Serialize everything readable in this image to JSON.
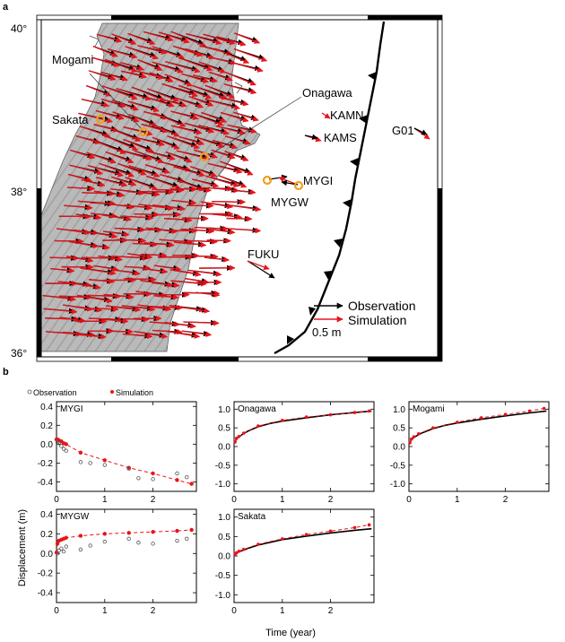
{
  "panel_a": {
    "letter": "a",
    "lat_labels": [
      "40°",
      "38°",
      "36°"
    ],
    "station_labels": {
      "mogami": "Mogami",
      "sakata": "Sakata",
      "onagawa": "Onagawa",
      "kamn": "KAMN",
      "kams": "KAMS",
      "g01": "G01",
      "mygi": "MYGI",
      "mygw": "MYGW",
      "fuku": "FUKU"
    },
    "legend": {
      "observation": "Observation",
      "simulation": "Simulation",
      "scale": "0.5 m"
    },
    "colors": {
      "observation": "#000000",
      "simulation": "#e8141b",
      "station_marker": "#f0a020",
      "land": "#b9b9b9"
    }
  },
  "panel_b": {
    "letter": "b",
    "legend": {
      "observation": "Observation",
      "simulation": "Simulation"
    },
    "ylabel": "Displacement (m)",
    "xlabel": "Time (year)"
  },
  "chart_data": [
    {
      "type": "scatter",
      "title": "MYGI",
      "xlim": [
        0,
        2.9
      ],
      "ylim": [
        -0.5,
        0.45
      ],
      "yticks": [
        "0.4",
        "0.2",
        "0.0",
        "-0.2",
        "-0.4"
      ],
      "xticks": [
        "0",
        "1",
        "2"
      ],
      "series": [
        {
          "name": "Observation",
          "x": [
            0.02,
            0.05,
            0.1,
            0.15,
            0.2,
            0.5,
            0.7,
            1.0,
            1.5,
            1.7,
            2.0,
            2.5,
            2.7
          ],
          "y": [
            0.02,
            0.01,
            -0.02,
            -0.05,
            -0.07,
            -0.19,
            -0.2,
            -0.22,
            -0.26,
            -0.36,
            -0.37,
            -0.31,
            -0.35
          ]
        },
        {
          "name": "Simulation",
          "x": [
            0,
            0.02,
            0.05,
            0.1,
            0.15,
            0.2,
            0.5,
            1.0,
            1.5,
            2.0,
            2.5,
            2.8
          ],
          "y": [
            0.05,
            0.05,
            0.04,
            0.03,
            0.01,
            0.0,
            -0.09,
            -0.17,
            -0.25,
            -0.31,
            -0.38,
            -0.42
          ]
        }
      ]
    },
    {
      "type": "line",
      "title": "Onagawa",
      "xlim": [
        0,
        2.9
      ],
      "ylim": [
        -1.2,
        1.2
      ],
      "yticks": [
        "1.0",
        "0.5",
        "0.0",
        "-0.5",
        "-1.0"
      ],
      "xticks": [
        "0",
        "1",
        "2"
      ],
      "series": [
        {
          "name": "Observation",
          "x": [
            0,
            0.05,
            0.1,
            0.2,
            0.3,
            0.5,
            0.75,
            1.0,
            1.5,
            2.0,
            2.5,
            2.85
          ],
          "y": [
            0.08,
            0.2,
            0.26,
            0.35,
            0.42,
            0.53,
            0.62,
            0.68,
            0.77,
            0.85,
            0.91,
            0.95
          ]
        },
        {
          "name": "Simulation",
          "x": [
            0.02,
            0.05,
            0.1,
            0.2,
            0.5,
            1.0,
            1.5,
            2.0,
            2.5,
            2.8
          ],
          "y": [
            0.12,
            0.22,
            0.27,
            0.36,
            0.55,
            0.7,
            0.79,
            0.85,
            0.91,
            0.95
          ]
        }
      ]
    },
    {
      "type": "line",
      "title": "Mogami",
      "xlim": [
        0,
        2.9
      ],
      "ylim": [
        -1.2,
        1.2
      ],
      "yticks": [
        "1.0",
        "0.5",
        "0.0",
        "-0.5",
        "-1.0"
      ],
      "xticks": [
        "0",
        "1",
        "2"
      ],
      "series": [
        {
          "name": "Observation",
          "x": [
            0,
            0.05,
            0.1,
            0.2,
            0.3,
            0.5,
            0.75,
            1.0,
            1.5,
            2.0,
            2.5,
            2.85
          ],
          "y": [
            0.06,
            0.18,
            0.24,
            0.32,
            0.38,
            0.48,
            0.57,
            0.63,
            0.73,
            0.82,
            0.9,
            0.95
          ]
        },
        {
          "name": "Simulation",
          "x": [
            0.02,
            0.05,
            0.1,
            0.2,
            0.5,
            1.0,
            1.5,
            2.0,
            2.5,
            2.8
          ],
          "y": [
            0.1,
            0.2,
            0.26,
            0.34,
            0.5,
            0.65,
            0.77,
            0.86,
            0.95,
            1.02
          ]
        }
      ]
    },
    {
      "type": "scatter",
      "title": "MYGW",
      "xlim": [
        0,
        2.9
      ],
      "ylim": [
        -0.5,
        0.45
      ],
      "yticks": [
        "0.4",
        "0.2",
        "0.0",
        "-0.2",
        "-0.4"
      ],
      "xticks": [
        "0",
        "1",
        "2"
      ],
      "series": [
        {
          "name": "Observation",
          "x": [
            0.02,
            0.05,
            0.1,
            0.15,
            0.2,
            0.5,
            0.7,
            1.0,
            1.5,
            1.7,
            2.0,
            2.5,
            2.7
          ],
          "y": [
            0.0,
            0.03,
            0.05,
            0.02,
            0.07,
            0.04,
            0.08,
            0.12,
            0.15,
            0.11,
            0.1,
            0.13,
            0.15
          ]
        },
        {
          "name": "Simulation",
          "x": [
            0,
            0.02,
            0.05,
            0.1,
            0.15,
            0.2,
            0.5,
            1.0,
            1.5,
            2.0,
            2.5,
            2.8
          ],
          "y": [
            0.01,
            0.1,
            0.13,
            0.14,
            0.15,
            0.16,
            0.18,
            0.2,
            0.21,
            0.22,
            0.23,
            0.24
          ]
        }
      ]
    },
    {
      "type": "line",
      "title": "Sakata",
      "xlim": [
        0,
        2.9
      ],
      "ylim": [
        -1.2,
        1.2
      ],
      "yticks": [
        "1.0",
        "0.5",
        "0.0",
        "-0.5",
        "-1.0"
      ],
      "xticks": [
        "0",
        "1",
        "2"
      ],
      "series": [
        {
          "name": "Observation",
          "x": [
            0,
            0.05,
            0.1,
            0.2,
            0.3,
            0.5,
            0.75,
            1.0,
            1.5,
            2.0,
            2.5,
            2.85
          ],
          "y": [
            0.0,
            0.07,
            0.11,
            0.15,
            0.2,
            0.28,
            0.35,
            0.42,
            0.51,
            0.59,
            0.66,
            0.7
          ]
        },
        {
          "name": "Simulation",
          "x": [
            0.02,
            0.05,
            0.1,
            0.2,
            0.5,
            1.0,
            1.5,
            2.0,
            2.5,
            2.8
          ],
          "y": [
            0.04,
            0.08,
            0.12,
            0.17,
            0.3,
            0.44,
            0.55,
            0.64,
            0.73,
            0.8
          ]
        }
      ]
    }
  ]
}
